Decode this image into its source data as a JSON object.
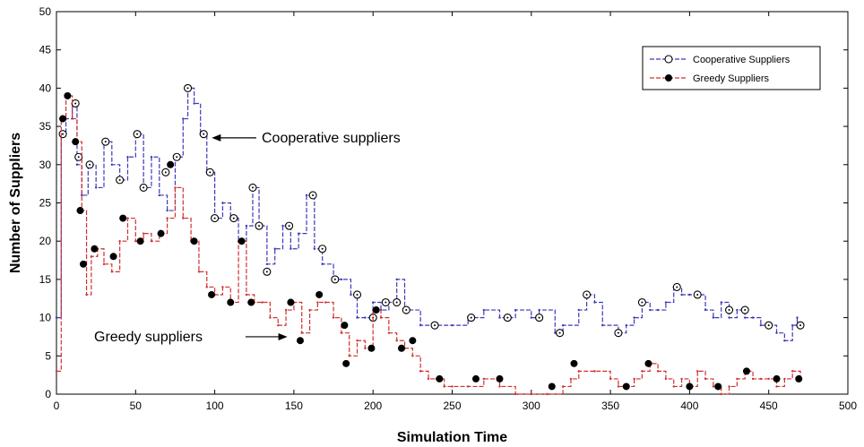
{
  "chart_data": {
    "type": "line",
    "title": "",
    "xlabel": "Simulation Time",
    "ylabel": "Number of Suppliers",
    "xlim": [
      0,
      500
    ],
    "ylim": [
      0,
      50
    ],
    "xticks": [
      "0",
      "50",
      "100",
      "150",
      "200",
      "250",
      "300",
      "350",
      "400",
      "450",
      "500"
    ],
    "yticks": [
      "0",
      "5",
      "10",
      "15",
      "20",
      "25",
      "30",
      "35",
      "40",
      "45",
      "50"
    ],
    "grid": false,
    "legend_position": "top-right",
    "series": [
      {
        "name": "Cooperative Suppliers",
        "color": "#3a3ab8",
        "marker": "open-circle",
        "x": [
          0,
          3,
          6,
          10,
          13,
          16,
          20,
          25,
          30,
          35,
          40,
          45,
          50,
          55,
          60,
          65,
          70,
          75,
          80,
          83,
          87,
          91,
          95,
          100,
          105,
          110,
          115,
          120,
          124,
          128,
          133,
          138,
          143,
          148,
          153,
          158,
          163,
          168,
          175,
          180,
          186,
          190,
          195,
          200,
          205,
          210,
          215,
          220,
          230,
          240,
          250,
          260,
          270,
          280,
          290,
          300,
          305,
          315,
          320,
          330,
          335,
          340,
          345,
          355,
          360,
          365,
          370,
          375,
          380,
          385,
          390,
          395,
          400,
          405,
          410,
          415,
          420,
          425,
          430,
          435,
          440,
          445,
          450,
          455,
          460,
          465,
          468
        ],
        "y": [
          10,
          34,
          36,
          38,
          30,
          26,
          30,
          27,
          33,
          30,
          28,
          31,
          34,
          27,
          31,
          26,
          24,
          31,
          36,
          40,
          38,
          34,
          29,
          23,
          25,
          23,
          20,
          22,
          27,
          22,
          17,
          19,
          22,
          19,
          21,
          26,
          19,
          17,
          15,
          15,
          13,
          10,
          10,
          12,
          11,
          12,
          15,
          11,
          9,
          9,
          9,
          10,
          11,
          10,
          11,
          10,
          11,
          8,
          9,
          11,
          13,
          12,
          9,
          8,
          9,
          10,
          12,
          11,
          11,
          12,
          14,
          13,
          13,
          13,
          11,
          10,
          12,
          10,
          11,
          10,
          10,
          9,
          9,
          8,
          7,
          9,
          10
        ],
        "markers_x": [
          4,
          12,
          14,
          21,
          31,
          40,
          51,
          55,
          69,
          76,
          83,
          93,
          97,
          100,
          112,
          124,
          128,
          133,
          147,
          162,
          168,
          176,
          190,
          200,
          208,
          215,
          221,
          239,
          262,
          285,
          305,
          318,
          335,
          355,
          370,
          392,
          405,
          425,
          435,
          450,
          470
        ],
        "markers_y": [
          34,
          38,
          31,
          30,
          33,
          28,
          34,
          27,
          29,
          31,
          40,
          34,
          29,
          23,
          23,
          27,
          22,
          16,
          22,
          26,
          19,
          15,
          13,
          10,
          12,
          12,
          11,
          9,
          10,
          10,
          10,
          8,
          13,
          8,
          12,
          14,
          13,
          11,
          11,
          9,
          9
        ]
      },
      {
        "name": "Greedy Suppliers",
        "color": "#d03030",
        "marker": "filled-circle",
        "x": [
          0,
          3,
          6,
          10,
          13,
          16,
          19,
          22,
          26,
          30,
          35,
          40,
          45,
          50,
          55,
          60,
          65,
          70,
          75,
          80,
          85,
          90,
          95,
          100,
          105,
          110,
          115,
          120,
          125,
          130,
          135,
          140,
          145,
          150,
          155,
          160,
          165,
          170,
          175,
          180,
          185,
          190,
          195,
          200,
          205,
          210,
          215,
          220,
          225,
          230,
          235,
          240,
          245,
          250,
          260,
          270,
          280,
          290,
          300,
          310,
          320,
          325,
          330,
          340,
          350,
          355,
          360,
          365,
          370,
          375,
          380,
          385,
          390,
          395,
          400,
          405,
          410,
          415,
          420,
          425,
          430,
          435,
          440,
          445,
          450,
          455,
          460,
          465,
          470
        ],
        "y": [
          3,
          36,
          39,
          36,
          33,
          24,
          13,
          18,
          19,
          17,
          16,
          20,
          23,
          20,
          21,
          20,
          21,
          23,
          27,
          23,
          20,
          16,
          14,
          13,
          14,
          12,
          20,
          13,
          12,
          12,
          10,
          9,
          11,
          12,
          8,
          11,
          12,
          12,
          10,
          8,
          5,
          7,
          6,
          11,
          10,
          8,
          7,
          6,
          5,
          3,
          2,
          2,
          1,
          1,
          1,
          2,
          1,
          0,
          0,
          0,
          1,
          2,
          3,
          3,
          2,
          1,
          1,
          2,
          3,
          4,
          3,
          2,
          1,
          2,
          1,
          3,
          2,
          1,
          0,
          1,
          2,
          3,
          2,
          2,
          2,
          1,
          2,
          3,
          2
        ],
        "markers_x": [
          4,
          7,
          12,
          15,
          17,
          24,
          36,
          42,
          53,
          66,
          72,
          87,
          98,
          110,
          117,
          123,
          148,
          154,
          166,
          182,
          183,
          199,
          202,
          218,
          225,
          242,
          265,
          280,
          313,
          327,
          360,
          374,
          400,
          418,
          436,
          455,
          469
        ],
        "markers_y": [
          36,
          39,
          33,
          24,
          17,
          19,
          18,
          23,
          20,
          21,
          30,
          20,
          13,
          12,
          20,
          12,
          12,
          7,
          13,
          9,
          4,
          6,
          11,
          6,
          7,
          2,
          2,
          2,
          1,
          4,
          1,
          4,
          1,
          1,
          3,
          2,
          2
        ]
      }
    ],
    "annotations": [
      {
        "text": "Cooperative suppliers",
        "target": [
          97,
          33.5
        ]
      },
      {
        "text": "Greedy suppliers",
        "target": [
          147,
          7.5
        ]
      }
    ]
  }
}
